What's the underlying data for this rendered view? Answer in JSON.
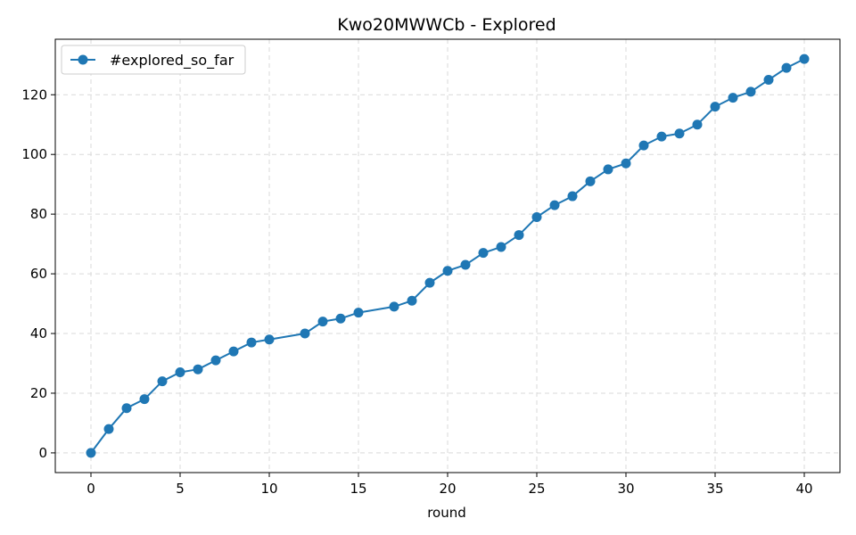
{
  "chart_data": {
    "type": "line",
    "title": "Kwo20MWWCb - Explored",
    "xlabel": "round",
    "ylabel": "",
    "xlim": [
      -2,
      42
    ],
    "ylim": [
      -6.6,
      138.6
    ],
    "xticks": [
      0,
      5,
      10,
      15,
      20,
      25,
      30,
      35,
      40
    ],
    "yticks": [
      0,
      20,
      40,
      60,
      80,
      100,
      120
    ],
    "grid": true,
    "legend": {
      "placement": "top-left"
    },
    "series": [
      {
        "name": "#explored_so_far",
        "color": "#1f77b4",
        "marker": "circle",
        "x": [
          0,
          1,
          2,
          3,
          4,
          5,
          6,
          7,
          8,
          9,
          10,
          12,
          13,
          14,
          15,
          17,
          18,
          19,
          20,
          21,
          22,
          23,
          24,
          25,
          26,
          27,
          28,
          29,
          30,
          31,
          32,
          33,
          34,
          35,
          36,
          37,
          38,
          39,
          40
        ],
        "y": [
          0,
          8,
          15,
          18,
          24,
          27,
          28,
          31,
          34,
          37,
          38,
          40,
          44,
          45,
          47,
          49,
          51,
          57,
          61,
          63,
          67,
          69,
          73,
          79,
          83,
          86,
          91,
          95,
          97,
          103,
          106,
          107,
          110,
          116,
          119,
          121,
          125,
          129,
          132
        ]
      }
    ]
  }
}
